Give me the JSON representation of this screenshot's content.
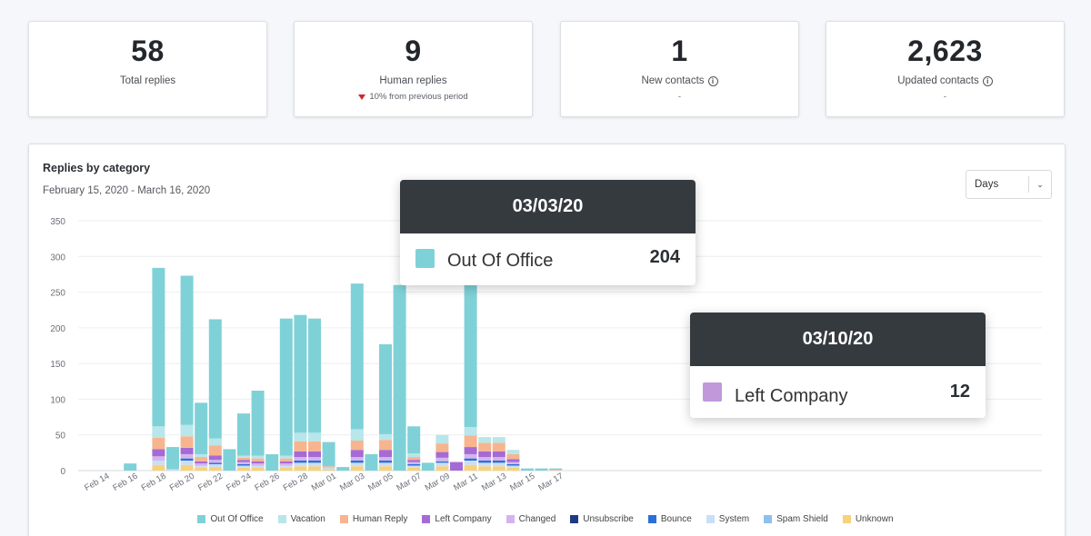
{
  "stats": [
    {
      "value": "58",
      "label": "Total replies",
      "sub": ""
    },
    {
      "value": "9",
      "label": "Human replies",
      "sub": "10% from previous period"
    },
    {
      "value": "1",
      "label": "New contacts",
      "sub": "-"
    },
    {
      "value": "2,623",
      "label": "Updated contacts",
      "sub": "-"
    }
  ],
  "panel": {
    "title": "Replies by category",
    "range": "February 15, 2020 - March 16, 2020",
    "dropdown": "Days"
  },
  "tooltips": [
    {
      "date": "03/03/20",
      "series": "Out Of Office",
      "value": "204",
      "color": "#7fd1d8"
    },
    {
      "date": "03/10/20",
      "series": "Left Company",
      "value": "12",
      "color": "#c198d9"
    }
  ],
  "chart_data": {
    "type": "bar",
    "stacked": true,
    "title": "Replies by category",
    "ylim": [
      0,
      350
    ],
    "yticks": [
      0,
      50,
      100,
      150,
      200,
      250,
      300,
      350
    ],
    "grid": true,
    "legend_position": "bottom",
    "x_tick_labels": [
      "Feb 14",
      "Feb 16",
      "Feb 18",
      "Feb 20",
      "Feb 22",
      "Feb 24",
      "Feb 26",
      "Feb 28",
      "Mar 01",
      "Mar 03",
      "Mar 05",
      "Mar 07",
      "Mar 09",
      "Mar 11",
      "Mar 13",
      "Mar 15",
      "Mar 17"
    ],
    "x": [
      "Feb 14",
      "Feb 15",
      "Feb 16",
      "Feb 17",
      "Feb 18",
      "Feb 19",
      "Feb 20",
      "Feb 21",
      "Feb 22",
      "Feb 23",
      "Feb 24",
      "Feb 25",
      "Feb 26",
      "Feb 27",
      "Feb 28",
      "Feb 29",
      "Mar 01",
      "Mar 02",
      "Mar 03",
      "Mar 04",
      "Mar 05",
      "Mar 06",
      "Mar 07",
      "Mar 08",
      "Mar 09",
      "Mar 10",
      "Mar 11",
      "Mar 12",
      "Mar 13",
      "Mar 14",
      "Mar 15",
      "Mar 16",
      "Mar 17"
    ],
    "series": [
      {
        "name": "Unknown",
        "color": "#f7d27b",
        "values": [
          0,
          0,
          0,
          0,
          8,
          0,
          8,
          4,
          5,
          0,
          4,
          4,
          0,
          4,
          6,
          6,
          2,
          0,
          6,
          0,
          6,
          0,
          4,
          0,
          6,
          0,
          8,
          6,
          6,
          4,
          0,
          0,
          0
        ]
      },
      {
        "name": "Spam Shield",
        "color": "#8ec0ee",
        "values": [
          0,
          0,
          0,
          0,
          0,
          0,
          0,
          0,
          0,
          0,
          0,
          0,
          0,
          0,
          0,
          0,
          0,
          0,
          0,
          0,
          0,
          0,
          0,
          0,
          0,
          0,
          0,
          0,
          0,
          0,
          0,
          0,
          0
        ]
      },
      {
        "name": "System",
        "color": "#c9def7",
        "values": [
          0,
          0,
          0,
          0,
          6,
          2,
          6,
          3,
          4,
          0,
          3,
          3,
          0,
          3,
          5,
          5,
          2,
          0,
          5,
          0,
          5,
          0,
          3,
          0,
          5,
          0,
          6,
          5,
          5,
          3,
          0,
          0,
          0
        ]
      },
      {
        "name": "Bounce",
        "color": "#2a70d8",
        "values": [
          0,
          0,
          0,
          0,
          0,
          0,
          3,
          0,
          2,
          0,
          2,
          0,
          0,
          0,
          3,
          3,
          0,
          0,
          3,
          0,
          3,
          0,
          2,
          0,
          2,
          0,
          3,
          3,
          3,
          2,
          0,
          0,
          0
        ]
      },
      {
        "name": "Unsubscribe",
        "color": "#1f3a82",
        "values": [
          0,
          0,
          0,
          0,
          0,
          0,
          0,
          0,
          0,
          0,
          0,
          0,
          0,
          0,
          0,
          0,
          0,
          0,
          0,
          0,
          0,
          0,
          0,
          0,
          0,
          0,
          0,
          0,
          0,
          0,
          0,
          0,
          0
        ]
      },
      {
        "name": "Changed",
        "color": "#d4b4ee",
        "values": [
          0,
          0,
          0,
          0,
          6,
          0,
          6,
          3,
          4,
          0,
          3,
          3,
          0,
          3,
          5,
          5,
          1,
          0,
          5,
          0,
          5,
          0,
          3,
          0,
          5,
          0,
          6,
          5,
          5,
          3,
          0,
          0,
          0
        ]
      },
      {
        "name": "Left Company",
        "color": "#a66ad4",
        "values": [
          0,
          0,
          0,
          0,
          10,
          0,
          9,
          3,
          6,
          0,
          3,
          3,
          0,
          3,
          8,
          8,
          0,
          0,
          10,
          0,
          10,
          0,
          3,
          0,
          8,
          12,
          10,
          8,
          8,
          4,
          0,
          0,
          0
        ]
      },
      {
        "name": "Human Reply",
        "color": "#f7b58f",
        "values": [
          0,
          0,
          0,
          0,
          16,
          0,
          16,
          6,
          14,
          0,
          3,
          4,
          0,
          4,
          14,
          14,
          1,
          0,
          13,
          0,
          14,
          0,
          4,
          0,
          12,
          0,
          16,
          12,
          12,
          7,
          0,
          0,
          1
        ]
      },
      {
        "name": "Vacation",
        "color": "#b8e6ea",
        "values": [
          0,
          0,
          0,
          0,
          16,
          0,
          16,
          4,
          10,
          0,
          3,
          4,
          0,
          4,
          12,
          12,
          0,
          0,
          16,
          0,
          8,
          0,
          5,
          0,
          12,
          0,
          12,
          8,
          8,
          6,
          0,
          0,
          0
        ]
      },
      {
        "name": "Out Of Office",
        "color": "#7fd1d8",
        "values": [
          0,
          0,
          10,
          0,
          222,
          31,
          209,
          72,
          167,
          30,
          59,
          91,
          23,
          192,
          165,
          160,
          34,
          5,
          204,
          23,
          126,
          260,
          38,
          11,
          0,
          0,
          208,
          0,
          0,
          0,
          3,
          3,
          2
        ]
      }
    ],
    "legend": [
      "Out Of Office",
      "Vacation",
      "Human Reply",
      "Left Company",
      "Changed",
      "Unsubscribe",
      "Bounce",
      "System",
      "Spam Shield",
      "Unknown"
    ]
  }
}
